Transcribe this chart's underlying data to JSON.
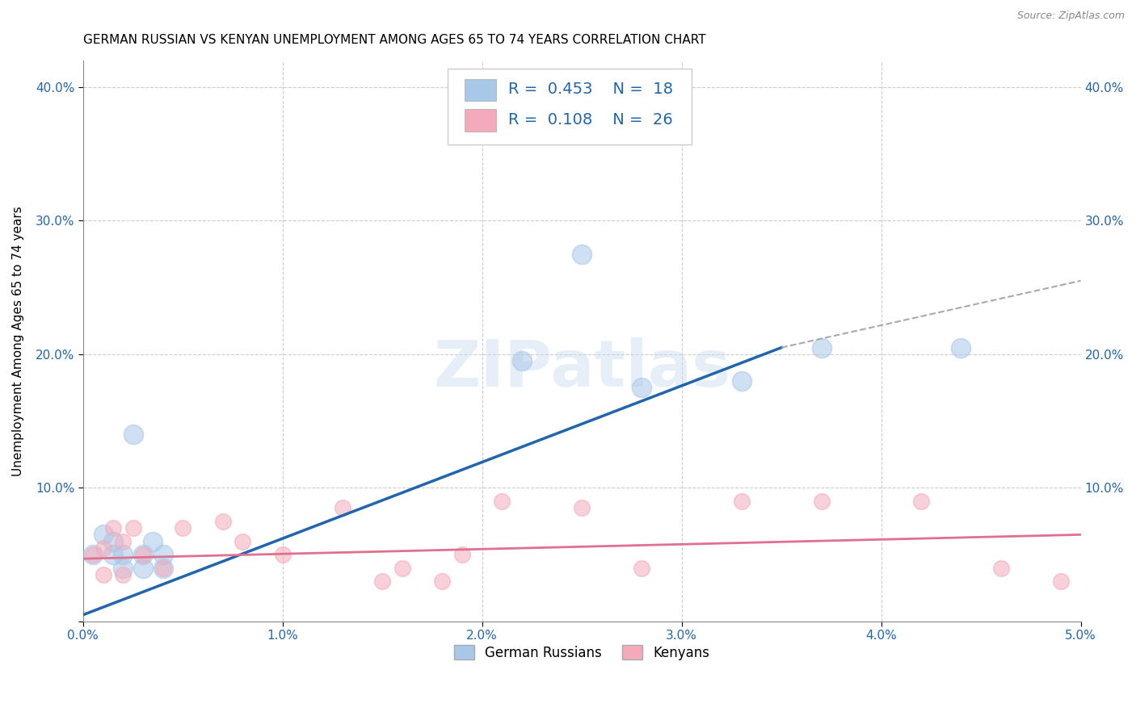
{
  "title": "GERMAN RUSSIAN VS KENYAN UNEMPLOYMENT AMONG AGES 65 TO 74 YEARS CORRELATION CHART",
  "source": "Source: ZipAtlas.com",
  "ylabel": "Unemployment Among Ages 65 to 74 years",
  "xlim": [
    0.0,
    0.05
  ],
  "ylim": [
    0.0,
    0.42
  ],
  "blue_color": "#A8C8E8",
  "pink_color": "#F4AABB",
  "blue_line_color": "#2166AC",
  "pink_line_color": "#E07090",
  "watermark_text": "ZIPatlas",
  "german_russian_x": [
    0.0005,
    0.001,
    0.0015,
    0.0015,
    0.002,
    0.002,
    0.0025,
    0.003,
    0.003,
    0.0035,
    0.004,
    0.004,
    0.022,
    0.025,
    0.028,
    0.033,
    0.037,
    0.044
  ],
  "german_russian_y": [
    0.05,
    0.065,
    0.05,
    0.06,
    0.04,
    0.05,
    0.14,
    0.04,
    0.05,
    0.06,
    0.04,
    0.05,
    0.195,
    0.275,
    0.175,
    0.18,
    0.205,
    0.205
  ],
  "kenyan_x": [
    0.0005,
    0.001,
    0.001,
    0.0015,
    0.002,
    0.002,
    0.0025,
    0.003,
    0.004,
    0.005,
    0.007,
    0.008,
    0.01,
    0.013,
    0.015,
    0.016,
    0.018,
    0.019,
    0.021,
    0.025,
    0.028,
    0.033,
    0.037,
    0.042,
    0.046,
    0.049
  ],
  "kenyan_y": [
    0.05,
    0.055,
    0.035,
    0.07,
    0.035,
    0.06,
    0.07,
    0.05,
    0.04,
    0.07,
    0.075,
    0.06,
    0.05,
    0.085,
    0.03,
    0.04,
    0.03,
    0.05,
    0.09,
    0.085,
    0.04,
    0.09,
    0.09,
    0.09,
    0.04,
    0.03
  ],
  "blue_scatter_size": 300,
  "pink_scatter_size": 200,
  "blue_line_x": [
    0.0,
    0.035
  ],
  "blue_line_y": [
    0.005,
    0.205
  ],
  "dashed_line_x": [
    0.035,
    0.05
  ],
  "dashed_line_y": [
    0.205,
    0.255
  ],
  "pink_line_x": [
    0.0,
    0.05
  ],
  "pink_line_y": [
    0.047,
    0.065
  ],
  "title_fontsize": 11,
  "axis_label_fontsize": 11,
  "tick_fontsize": 11,
  "source_fontsize": 9,
  "legend_fontsize": 14
}
